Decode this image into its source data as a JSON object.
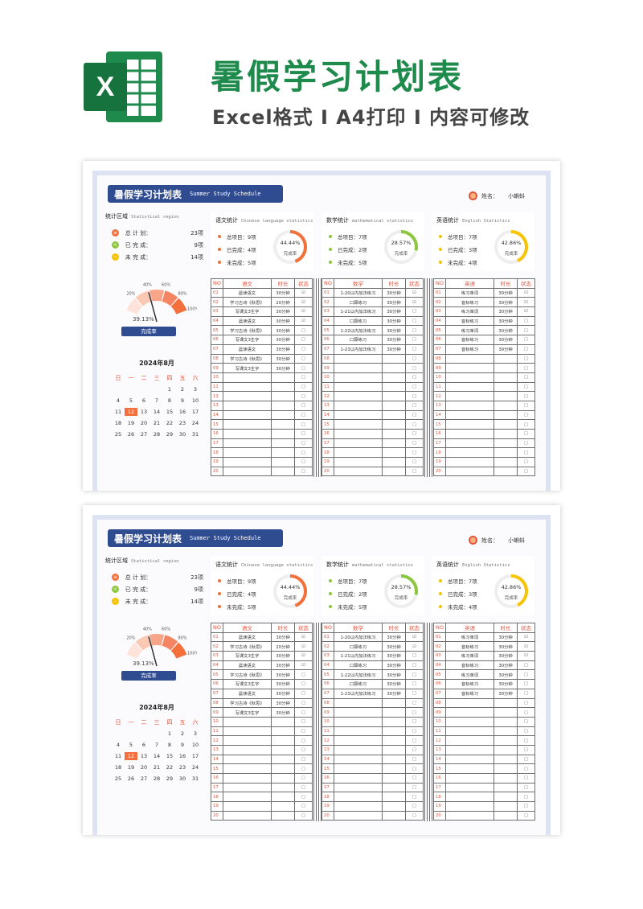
{
  "header": {
    "title": "暑假学习计划表",
    "subtitle": "Excel格式 I A4打印 I 内容可修改",
    "logo_letter": "X"
  },
  "colors": {
    "excel_green": "#1e8a4c",
    "navy": "#2f4c91",
    "accent": "#f36f3c",
    "chinese": "#f36f3c",
    "math": "#8dc63f",
    "english": "#f8c300"
  },
  "sheet": {
    "banner_title": "暑假学习计划表",
    "banner_en": "Summer Study Schedule",
    "user_label": "姓名：",
    "user_name": "小蝌蚪",
    "stats": {
      "title": "统计区域",
      "title_en": "Statistical region",
      "rows": [
        {
          "icon": "list-icon",
          "label": "总 计 划：",
          "value": "23项"
        },
        {
          "icon": "share-icon",
          "label": "已 完 成：",
          "value": "9项"
        },
        {
          "icon": "minus-icon",
          "label": "未 完 成：",
          "value": "14项"
        }
      ],
      "gauge_ticks": [
        "20%",
        "40%",
        "60%",
        "80%",
        "100%"
      ],
      "gauge_value": 39.13,
      "gauge_text": "39.13%",
      "rate_button": "完成率"
    },
    "calendar": {
      "title": "2024年8月",
      "weekdays": [
        "日",
        "一",
        "二",
        "三",
        "四",
        "五",
        "六"
      ],
      "lead_blanks": 4,
      "days": 31,
      "highlight": 12
    },
    "subjects": [
      {
        "title": "语文统计",
        "title_en": "Chinese language statistics",
        "total": "总项目：9项",
        "done": "已完成：4项",
        "todo": "未完成：5项",
        "percent": 44.44,
        "percent_text": "44.44%",
        "ring_label": "完成率",
        "col_subject": "语文",
        "col_time": "时长",
        "col_status": "状态",
        "rows": [
          [
            "01",
            "晨读语文",
            "30分钟",
            "☑"
          ],
          [
            "02",
            "学习古诗《秋思》",
            "20分钟",
            "☑"
          ],
          [
            "03",
            "写课文3生字",
            "30分钟",
            "☑"
          ],
          [
            "04",
            "晨读语文",
            "30分钟",
            "☑"
          ],
          [
            "05",
            "学习古诗《秋思》",
            "30分钟",
            "□"
          ],
          [
            "06",
            "写课文3生字",
            "30分钟",
            "□"
          ],
          [
            "07",
            "晨读语文",
            "30分钟",
            "□"
          ],
          [
            "08",
            "学习古诗《秋思》",
            "30分钟",
            "□"
          ],
          [
            "09",
            "写课文3生字",
            "30分钟",
            "□"
          ],
          [
            "10",
            "",
            "",
            "□"
          ],
          [
            "11",
            "",
            "",
            "□"
          ],
          [
            "12",
            "",
            "",
            "□"
          ],
          [
            "13",
            "",
            "",
            "□"
          ],
          [
            "14",
            "",
            "",
            "□"
          ],
          [
            "15",
            "",
            "",
            "□"
          ],
          [
            "16",
            "",
            "",
            "□"
          ],
          [
            "17",
            "",
            "",
            "□"
          ],
          [
            "18",
            "",
            "",
            "□"
          ],
          [
            "19",
            "",
            "",
            "□"
          ],
          [
            "20",
            "",
            "",
            "□"
          ]
        ]
      },
      {
        "title": "数学统计",
        "title_en": "mathematical statistics",
        "total": "总项目：7项",
        "done": "已完成：2项",
        "todo": "未完成：5项",
        "percent": 28.57,
        "percent_text": "28.57%",
        "ring_label": "完成率",
        "col_subject": "数学",
        "col_time": "时长",
        "col_status": "状态",
        "rows": [
          [
            "01",
            "1-20以内加法练习",
            "30分钟",
            "☑"
          ],
          [
            "02",
            "口算练习",
            "30分钟",
            "☑"
          ],
          [
            "03",
            "1-21以内加法练习",
            "30分钟",
            "□"
          ],
          [
            "04",
            "口算练习",
            "30分钟",
            "□"
          ],
          [
            "05",
            "1-22以内加法练习",
            "30分钟",
            "□"
          ],
          [
            "06",
            "口算练习",
            "30分钟",
            "□"
          ],
          [
            "07",
            "1-23以内加法练习",
            "30分钟",
            "□"
          ],
          [
            "08",
            "",
            "",
            "□"
          ],
          [
            "09",
            "",
            "",
            "□"
          ],
          [
            "10",
            "",
            "",
            "□"
          ],
          [
            "11",
            "",
            "",
            "□"
          ],
          [
            "12",
            "",
            "",
            "□"
          ],
          [
            "13",
            "",
            "",
            "□"
          ],
          [
            "14",
            "",
            "",
            "□"
          ],
          [
            "15",
            "",
            "",
            "□"
          ],
          [
            "16",
            "",
            "",
            "□"
          ],
          [
            "17",
            "",
            "",
            "□"
          ],
          [
            "18",
            "",
            "",
            "□"
          ],
          [
            "19",
            "",
            "",
            "□"
          ],
          [
            "20",
            "",
            "",
            "□"
          ]
        ]
      },
      {
        "title": "英语统计",
        "title_en": "English Statistics",
        "total": "总项目：7项",
        "done": "已完成：3项",
        "todo": "未完成：4项",
        "percent": 42.86,
        "percent_text": "42.86%",
        "ring_label": "完成率",
        "col_subject": "英语",
        "col_time": "时长",
        "col_status": "状态",
        "rows": [
          [
            "01",
            "练习单词",
            "30分钟",
            "☑"
          ],
          [
            "02",
            "音标练习",
            "30分钟",
            "☑"
          ],
          [
            "03",
            "练习单词",
            "30分钟",
            "☑"
          ],
          [
            "04",
            "音标练习",
            "30分钟",
            "□"
          ],
          [
            "05",
            "练习单词",
            "30分钟",
            "□"
          ],
          [
            "06",
            "音标练习",
            "30分钟",
            "□"
          ],
          [
            "07",
            "音标练习",
            "30分钟",
            "□"
          ],
          [
            "08",
            "",
            "",
            "□"
          ],
          [
            "09",
            "",
            "",
            "□"
          ],
          [
            "10",
            "",
            "",
            "□"
          ],
          [
            "11",
            "",
            "",
            "□"
          ],
          [
            "12",
            "",
            "",
            "□"
          ],
          [
            "13",
            "",
            "",
            "□"
          ],
          [
            "14",
            "",
            "",
            "□"
          ],
          [
            "15",
            "",
            "",
            "□"
          ],
          [
            "16",
            "",
            "",
            "□"
          ],
          [
            "17",
            "",
            "",
            "□"
          ],
          [
            "18",
            "",
            "",
            "□"
          ],
          [
            "19",
            "",
            "",
            "□"
          ],
          [
            "20",
            "",
            "",
            "□"
          ]
        ]
      }
    ]
  }
}
